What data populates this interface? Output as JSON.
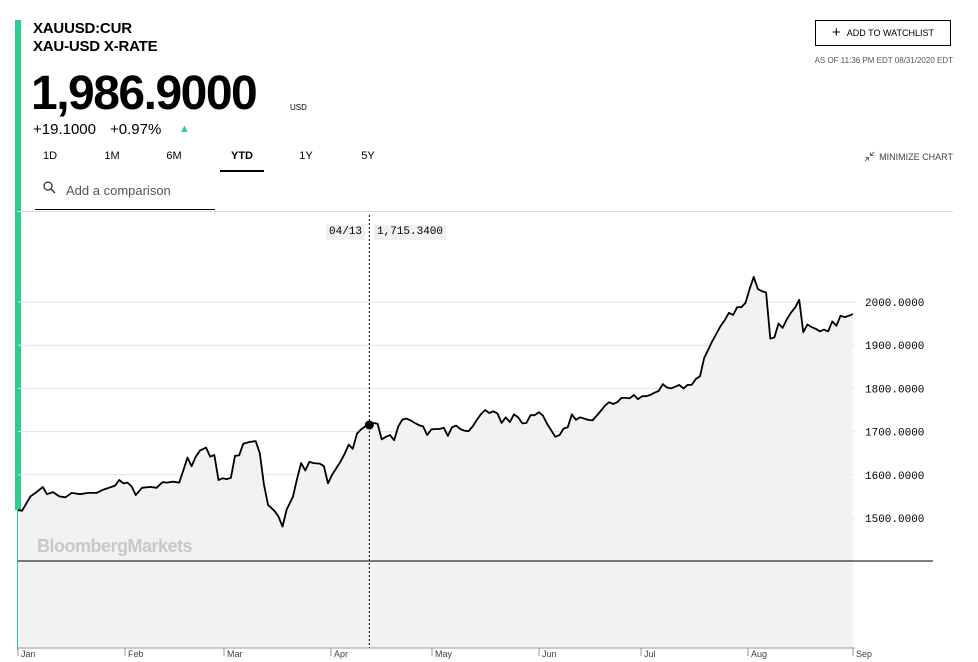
{
  "quote": {
    "ticker": "XAUUSD:CUR",
    "name": "XAU-USD X-RATE",
    "price": "1,986.9000",
    "currency": "USD",
    "change": "+19.1000",
    "change_pct": "+0.97%",
    "direction_icon": "up-triangle-icon",
    "as_of": "AS OF 11:36 PM EDT 08/31/2020 EDT"
  },
  "actions": {
    "watchlist_label": "ADD TO WATCHLIST",
    "minimize_label": "MINIMIZE CHART"
  },
  "tabs": [
    {
      "label": "1D",
      "active": false
    },
    {
      "label": "1M",
      "active": false
    },
    {
      "label": "6M",
      "active": false
    },
    {
      "label": "YTD",
      "active": true
    },
    {
      "label": "1Y",
      "active": false
    },
    {
      "label": "5Y",
      "active": false
    }
  ],
  "search": {
    "placeholder": "Add a comparison",
    "value": ""
  },
  "watermark": "BloombergMarkets",
  "colors": {
    "accent": "#2ecc8f",
    "line": "#000000",
    "area": "#f2f2f2"
  },
  "chart_data": {
    "type": "area",
    "title": "",
    "xlabel": "",
    "ylabel": "",
    "x_ticks": [
      "Jan",
      "Feb",
      "Mar",
      "Apr",
      "May",
      "Jun",
      "Jul",
      "Aug",
      "Sep"
    ],
    "y_ticks": [
      "1500.0000",
      "1600.0000",
      "1700.0000",
      "1800.0000",
      "1900.0000",
      "2000.0000"
    ],
    "ylim": [
      1400,
      2070
    ],
    "grid": true,
    "tooltip": {
      "date": "04/13",
      "value": "1,715.3400"
    },
    "series": [
      {
        "values": [
          [
            0,
            1518
          ],
          [
            2,
            1517
          ],
          [
            6,
            1550
          ],
          [
            9,
            1560
          ],
          [
            12,
            1572
          ],
          [
            14,
            1555
          ],
          [
            17,
            1560
          ],
          [
            20,
            1550
          ],
          [
            23,
            1548
          ],
          [
            26,
            1558
          ],
          [
            30,
            1555
          ],
          [
            34,
            1558
          ],
          [
            38,
            1558
          ],
          [
            41,
            1565
          ],
          [
            44,
            1570
          ],
          [
            47,
            1575
          ],
          [
            49,
            1588
          ],
          [
            51,
            1580
          ],
          [
            53,
            1582
          ],
          [
            55,
            1573
          ],
          [
            57,
            1553
          ],
          [
            60,
            1570
          ],
          [
            64,
            1572
          ],
          [
            67,
            1570
          ],
          [
            70,
            1583
          ],
          [
            72,
            1582
          ],
          [
            75,
            1584
          ],
          [
            78,
            1582
          ],
          [
            80,
            1610
          ],
          [
            82,
            1640
          ],
          [
            84,
            1620
          ],
          [
            86,
            1642
          ],
          [
            88,
            1656
          ],
          [
            91,
            1663
          ],
          [
            93,
            1642
          ],
          [
            95,
            1646
          ],
          [
            97,
            1588
          ],
          [
            99,
            1592
          ],
          [
            101,
            1590
          ],
          [
            103,
            1593
          ],
          [
            105,
            1644
          ],
          [
            107,
            1645
          ],
          [
            109,
            1672
          ],
          [
            112,
            1676
          ],
          [
            115,
            1678
          ],
          [
            117,
            1650
          ],
          [
            119,
            1578
          ],
          [
            121,
            1530
          ],
          [
            124,
            1517
          ],
          [
            126,
            1504
          ],
          [
            128,
            1480
          ],
          [
            130,
            1520
          ],
          [
            133,
            1549
          ],
          [
            135,
            1590
          ],
          [
            137,
            1627
          ],
          [
            139,
            1610
          ],
          [
            141,
            1630
          ],
          [
            143,
            1627
          ],
          [
            146,
            1626
          ],
          [
            148,
            1620
          ],
          [
            150,
            1580
          ],
          [
            152,
            1600
          ],
          [
            154,
            1615
          ],
          [
            156,
            1630
          ],
          [
            158,
            1648
          ],
          [
            160,
            1670
          ],
          [
            162,
            1660
          ],
          [
            164,
            1695
          ],
          [
            166,
            1705
          ],
          [
            168,
            1712
          ],
          [
            170,
            1715
          ],
          [
            172,
            1720
          ],
          [
            174,
            1718
          ],
          [
            176,
            1682
          ],
          [
            178,
            1688
          ],
          [
            180,
            1692
          ],
          [
            182,
            1680
          ],
          [
            184,
            1712
          ],
          [
            186,
            1728
          ],
          [
            188,
            1730
          ],
          [
            190,
            1726
          ],
          [
            192,
            1720
          ],
          [
            194,
            1715
          ],
          [
            196,
            1712
          ],
          [
            198,
            1692
          ],
          [
            200,
            1705
          ],
          [
            202,
            1706
          ],
          [
            204,
            1706
          ],
          [
            206,
            1709
          ],
          [
            208,
            1690
          ],
          [
            210,
            1710
          ],
          [
            212,
            1714
          ],
          [
            214,
            1706
          ],
          [
            216,
            1702
          ],
          [
            218,
            1701
          ],
          [
            220,
            1712
          ],
          [
            222,
            1727
          ],
          [
            224,
            1740
          ],
          [
            226,
            1750
          ],
          [
            228,
            1743
          ],
          [
            230,
            1747
          ],
          [
            232,
            1742
          ],
          [
            234,
            1720
          ],
          [
            236,
            1733
          ],
          [
            238,
            1722
          ],
          [
            240,
            1740
          ],
          [
            242,
            1733
          ],
          [
            244,
            1719
          ],
          [
            246,
            1720
          ],
          [
            248,
            1738
          ],
          [
            250,
            1738
          ],
          [
            252,
            1745
          ],
          [
            254,
            1737
          ],
          [
            256,
            1718
          ],
          [
            258,
            1703
          ],
          [
            260,
            1688
          ],
          [
            262,
            1692
          ],
          [
            264,
            1707
          ],
          [
            266,
            1710
          ],
          [
            268,
            1740
          ],
          [
            270,
            1727
          ],
          [
            272,
            1733
          ],
          [
            274,
            1730
          ],
          [
            276,
            1727
          ],
          [
            278,
            1726
          ],
          [
            280,
            1737
          ],
          [
            282,
            1748
          ],
          [
            284,
            1760
          ],
          [
            286,
            1768
          ],
          [
            288,
            1764
          ],
          [
            290,
            1768
          ],
          [
            292,
            1778
          ],
          [
            294,
            1778
          ],
          [
            296,
            1777
          ],
          [
            298,
            1785
          ],
          [
            300,
            1775
          ],
          [
            302,
            1782
          ],
          [
            304,
            1782
          ],
          [
            306,
            1785
          ],
          [
            308,
            1790
          ],
          [
            310,
            1794
          ],
          [
            312,
            1810
          ],
          [
            314,
            1802
          ],
          [
            316,
            1800
          ],
          [
            318,
            1804
          ],
          [
            320,
            1808
          ],
          [
            322,
            1800
          ],
          [
            324,
            1808
          ],
          [
            326,
            1808
          ],
          [
            328,
            1822
          ],
          [
            330,
            1828
          ],
          [
            332,
            1870
          ],
          [
            334,
            1890
          ],
          [
            336,
            1910
          ],
          [
            338,
            1927
          ],
          [
            340,
            1945
          ],
          [
            342,
            1958
          ],
          [
            344,
            1975
          ],
          [
            346,
            1970
          ],
          [
            348,
            1988
          ],
          [
            350,
            1988
          ],
          [
            352,
            1998
          ],
          [
            354,
            2030
          ],
          [
            356,
            2058
          ],
          [
            358,
            2030
          ],
          [
            360,
            2025
          ],
          [
            362,
            2022
          ],
          [
            364,
            1915
          ],
          [
            366,
            1918
          ],
          [
            368,
            1950
          ],
          [
            370,
            1940
          ],
          [
            372,
            1960
          ],
          [
            374,
            1975
          ],
          [
            376,
            1987
          ],
          [
            378,
            2005
          ],
          [
            380,
            1930
          ],
          [
            382,
            1948
          ],
          [
            384,
            1942
          ],
          [
            386,
            1938
          ],
          [
            388,
            1932
          ],
          [
            390,
            1936
          ],
          [
            392,
            1932
          ],
          [
            394,
            1955
          ],
          [
            396,
            1945
          ],
          [
            398,
            1968
          ],
          [
            400,
            1965
          ],
          [
            402,
            1968
          ],
          [
            404,
            1972
          ]
        ]
      }
    ]
  }
}
